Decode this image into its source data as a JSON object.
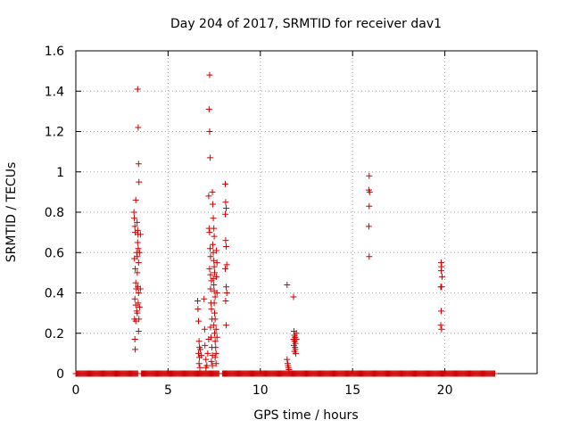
{
  "chart_data": {
    "type": "scatter",
    "title": "Day 204 of 2017, SRMTID for receiver dav1",
    "xlabel": "GPS time / hours",
    "ylabel": "SRMTID / TECUs",
    "xlim": [
      0,
      25
    ],
    "ylim": [
      0,
      1.6
    ],
    "xticks": [
      0,
      5,
      10,
      15,
      20
    ],
    "xtick_labels": [
      "0",
      "5",
      "10",
      "15",
      "20"
    ],
    "yticks": [
      0,
      0.2,
      0.4,
      0.6,
      0.8,
      1,
      1.2,
      1.4,
      1.6
    ],
    "ytick_labels": [
      "0",
      "0.2",
      "0.4",
      "0.6",
      "0.8",
      "1",
      "1.2",
      "1.4",
      "1.6"
    ],
    "grid": true,
    "marker": "+",
    "marker_color": "#cc0000",
    "zero_baseline": {
      "y": 0,
      "x_start": 0,
      "x_end": 22.7,
      "step": 0.05,
      "gaps": [
        [
          3.35,
          3.5
        ],
        [
          7.75,
          7.9
        ]
      ]
    },
    "series": [
      {
        "points": [
          [
            3.15,
            0.8
          ],
          [
            3.17,
            0.77
          ],
          [
            3.2,
            0.73
          ],
          [
            3.22,
            0.7
          ],
          [
            3.25,
            0.86
          ],
          [
            3.18,
            0.57
          ],
          [
            3.22,
            0.52
          ],
          [
            3.25,
            0.45
          ],
          [
            3.28,
            0.42
          ],
          [
            3.2,
            0.37
          ],
          [
            3.25,
            0.34
          ],
          [
            3.3,
            0.31
          ],
          [
            3.18,
            0.27
          ],
          [
            3.25,
            0.26
          ],
          [
            3.2,
            0.17
          ],
          [
            3.22,
            0.12
          ],
          [
            3.3,
            0.6
          ],
          [
            3.33,
            0.58
          ],
          [
            3.35,
            0.65
          ],
          [
            3.37,
            0.69
          ],
          [
            3.32,
            0.75
          ],
          [
            3.35,
            0.71
          ],
          [
            3.38,
            0.62
          ],
          [
            3.4,
            0.55
          ],
          [
            3.33,
            0.5
          ],
          [
            3.36,
            0.43
          ],
          [
            3.4,
            0.4
          ],
          [
            3.38,
            0.35
          ],
          [
            3.33,
            0.3
          ],
          [
            3.42,
            0.27
          ],
          [
            3.4,
            0.21
          ],
          [
            3.45,
            0.33
          ],
          [
            3.5,
            0.42
          ],
          [
            3.45,
            0.6
          ],
          [
            3.5,
            0.69
          ],
          [
            3.35,
            1.41
          ],
          [
            3.38,
            1.22
          ],
          [
            3.4,
            1.04
          ],
          [
            3.42,
            0.95
          ],
          [
            6.6,
            0.36
          ],
          [
            6.62,
            0.32
          ],
          [
            6.65,
            0.26
          ],
          [
            6.68,
            0.16
          ],
          [
            6.7,
            0.13
          ],
          [
            6.65,
            0.1
          ],
          [
            6.7,
            0.08
          ],
          [
            6.68,
            0.05
          ],
          [
            6.72,
            0.03
          ],
          [
            6.75,
            0.12
          ],
          [
            6.8,
            0.09
          ],
          [
            6.95,
            0.37
          ],
          [
            6.98,
            0.22
          ],
          [
            7.0,
            0.14
          ],
          [
            7.05,
            0.07
          ],
          [
            7.1,
            0.04
          ],
          [
            7.05,
            0.03
          ],
          [
            7.15,
            0.1
          ],
          [
            7.2,
            0.17
          ],
          [
            7.2,
            0.88
          ],
          [
            7.22,
            0.72
          ],
          [
            7.25,
            0.7
          ],
          [
            7.28,
            0.62
          ],
          [
            7.3,
            0.58
          ],
          [
            7.25,
            0.52
          ],
          [
            7.3,
            0.49
          ],
          [
            7.35,
            0.46
          ],
          [
            7.3,
            0.42
          ],
          [
            7.32,
            0.35
          ],
          [
            7.35,
            0.32
          ],
          [
            7.38,
            0.27
          ],
          [
            7.3,
            0.23
          ],
          [
            7.33,
            0.18
          ],
          [
            7.37,
            0.13
          ],
          [
            7.4,
            0.09
          ],
          [
            7.35,
            0.06
          ],
          [
            7.4,
            0.04
          ],
          [
            7.4,
            0.9
          ],
          [
            7.42,
            0.84
          ],
          [
            7.45,
            0.77
          ],
          [
            7.48,
            0.72
          ],
          [
            7.5,
            0.68
          ],
          [
            7.42,
            0.64
          ],
          [
            7.45,
            0.6
          ],
          [
            7.48,
            0.56
          ],
          [
            7.5,
            0.53
          ],
          [
            7.52,
            0.5
          ],
          [
            7.45,
            0.47
          ],
          [
            7.48,
            0.44
          ],
          [
            7.5,
            0.41
          ],
          [
            7.55,
            0.38
          ],
          [
            7.5,
            0.35
          ],
          [
            7.52,
            0.3
          ],
          [
            7.55,
            0.27
          ],
          [
            7.48,
            0.24
          ],
          [
            7.52,
            0.2
          ],
          [
            7.55,
            0.16
          ],
          [
            7.58,
            0.13
          ],
          [
            7.6,
            0.1
          ],
          [
            7.55,
            0.08
          ],
          [
            7.6,
            0.05
          ],
          [
            7.62,
            0.61
          ],
          [
            7.65,
            0.55
          ],
          [
            7.62,
            0.48
          ],
          [
            7.65,
            0.4
          ],
          [
            7.6,
            0.22
          ],
          [
            7.65,
            0.18
          ],
          [
            7.25,
            1.48
          ],
          [
            7.22,
            1.31
          ],
          [
            7.25,
            1.2
          ],
          [
            7.28,
            1.07
          ],
          [
            8.1,
            0.94
          ],
          [
            8.12,
            0.85
          ],
          [
            8.15,
            0.82
          ],
          [
            8.1,
            0.79
          ],
          [
            8.12,
            0.66
          ],
          [
            8.15,
            0.63
          ],
          [
            8.18,
            0.54
          ],
          [
            8.1,
            0.52
          ],
          [
            8.15,
            0.43
          ],
          [
            8.18,
            0.4
          ],
          [
            8.12,
            0.36
          ],
          [
            8.15,
            0.24
          ],
          [
            11.45,
            0.44
          ],
          [
            11.45,
            0.07
          ],
          [
            11.48,
            0.05
          ],
          [
            11.5,
            0.04
          ],
          [
            11.52,
            0.03
          ],
          [
            11.55,
            0.02
          ],
          [
            11.8,
            0.38
          ],
          [
            11.82,
            0.21
          ],
          [
            11.85,
            0.19
          ],
          [
            11.88,
            0.18
          ],
          [
            11.8,
            0.17
          ],
          [
            11.85,
            0.16
          ],
          [
            11.9,
            0.15
          ],
          [
            11.82,
            0.14
          ],
          [
            11.88,
            0.13
          ],
          [
            11.9,
            0.12
          ],
          [
            11.85,
            0.11
          ],
          [
            11.95,
            0.2
          ],
          [
            11.95,
            0.17
          ],
          [
            11.92,
            0.1
          ],
          [
            15.9,
            0.98
          ],
          [
            15.88,
            0.91
          ],
          [
            15.92,
            0.9
          ],
          [
            15.9,
            0.83
          ],
          [
            15.88,
            0.73
          ],
          [
            15.9,
            0.58
          ],
          [
            19.8,
            0.55
          ],
          [
            19.82,
            0.53
          ],
          [
            19.8,
            0.51
          ],
          [
            19.85,
            0.48
          ],
          [
            19.78,
            0.43
          ],
          [
            19.82,
            0.43
          ],
          [
            19.8,
            0.31
          ],
          [
            19.78,
            0.24
          ],
          [
            19.82,
            0.22
          ]
        ]
      }
    ]
  }
}
